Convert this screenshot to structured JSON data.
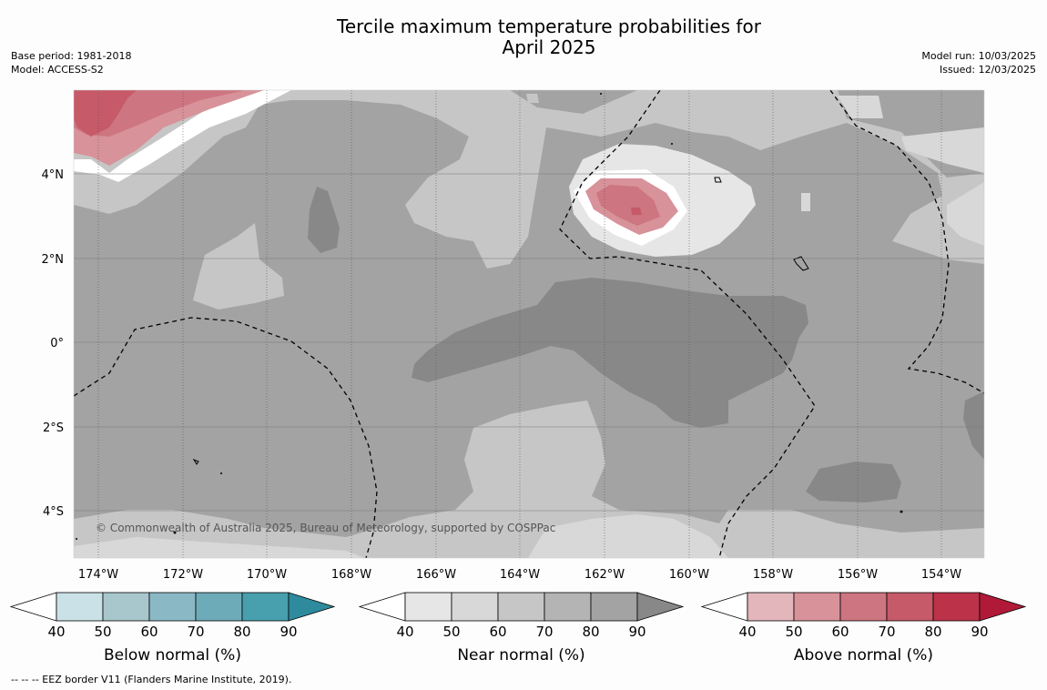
{
  "title": {
    "line1": "Tercile maximum temperature probabilities for",
    "line2": "April 2025"
  },
  "meta_left": {
    "base_period": "Base period: 1981-2018",
    "model": "Model: ACCESS-S2"
  },
  "meta_right": {
    "model_run": "Model run: 10/03/2025",
    "issued": "Issued: 12/03/2025"
  },
  "map": {
    "lat_labels": [
      "4°N",
      "2°N",
      "0°",
      "2°S",
      "4°S"
    ],
    "lon_labels": [
      "174°W",
      "172°W",
      "170°W",
      "168°W",
      "166°W",
      "164°W",
      "162°W",
      "160°W",
      "158°W",
      "156°W",
      "154°W"
    ],
    "copyright": "© Commonwealth of Australia 2025, Bureau of Meteorology, supported by COSPPac"
  },
  "colorbars": [
    {
      "label": "Below normal (%)",
      "ticks": [
        "40",
        "50",
        "60",
        "70",
        "80",
        "90"
      ],
      "colors": [
        "#ffffff",
        "#c9e1e7",
        "#a8c7cd",
        "#8ab9c5",
        "#6eabb8",
        "#489fad",
        "#2e8b9e"
      ]
    },
    {
      "label": "Near normal (%)",
      "ticks": [
        "40",
        "50",
        "60",
        "70",
        "80",
        "90"
      ],
      "colors": [
        "#ffffff",
        "#e6e6e6",
        "#d8d8d8",
        "#c6c6c6",
        "#b4b4b4",
        "#a3a3a3",
        "#888888"
      ]
    },
    {
      "label": "Above normal (%)",
      "ticks": [
        "40",
        "50",
        "60",
        "70",
        "80",
        "90"
      ],
      "colors": [
        "#ffffff",
        "#e3b6bb",
        "#d8929a",
        "#cd7580",
        "#c65a68",
        "#bc3249",
        "#b01a38"
      ]
    }
  ],
  "footnote": "--  --  -- EEZ border V11 (Flanders Marine Institute, 2019)."
}
